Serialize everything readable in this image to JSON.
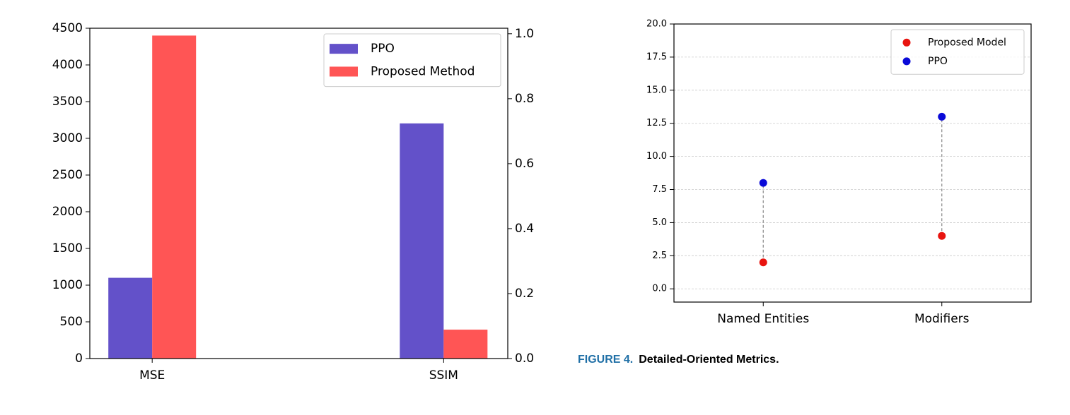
{
  "chart_data": [
    {
      "type": "bar",
      "categories": [
        "MSE",
        "SSIM"
      ],
      "category_axes": [
        "y",
        "y2"
      ],
      "series": [
        {
          "name": "PPO",
          "color": "#6351c9",
          "values": [
            1100,
            0.724
          ]
        },
        {
          "name": "Proposed Method",
          "color": "#ff5555",
          "values": [
            4400,
            0.089
          ]
        }
      ],
      "ylim": [
        0,
        4500
      ],
      "yticks": [
        0,
        500,
        1000,
        1500,
        2000,
        2500,
        3000,
        3500,
        4000,
        4500
      ],
      "y2lim": [
        0,
        1.017
      ],
      "y2ticks": [
        {
          "value": 0,
          "label": "0.0"
        },
        0.2,
        0.4,
        0.6,
        0.8,
        {
          "value": 1,
          "label": "1.0"
        }
      ],
      "legend": "upper right"
    },
    {
      "type": "dumbbell",
      "categories": [
        "Named Entities",
        "Modifiers"
      ],
      "series": [
        {
          "name": "Proposed Model",
          "color": "#e8140f",
          "values": [
            2,
            4
          ]
        },
        {
          "name": "PPO",
          "color": "#0a0ad8",
          "values": [
            8,
            13
          ]
        }
      ],
      "ylim": [
        -1,
        20
      ],
      "yticks": [
        {
          "value": 0,
          "label": "0.0"
        },
        2.5,
        {
          "value": 5,
          "label": "5.0"
        },
        7.5,
        {
          "value": 10,
          "label": "10.0"
        },
        12.5,
        {
          "value": 15,
          "label": "15.0"
        },
        17.5,
        {
          "value": 20,
          "label": "20.0"
        }
      ],
      "grid": true,
      "legend": "upper right"
    }
  ],
  "caption": {
    "label": "FIGURE 4.",
    "text": "Detailed-Oriented Metrics."
  }
}
